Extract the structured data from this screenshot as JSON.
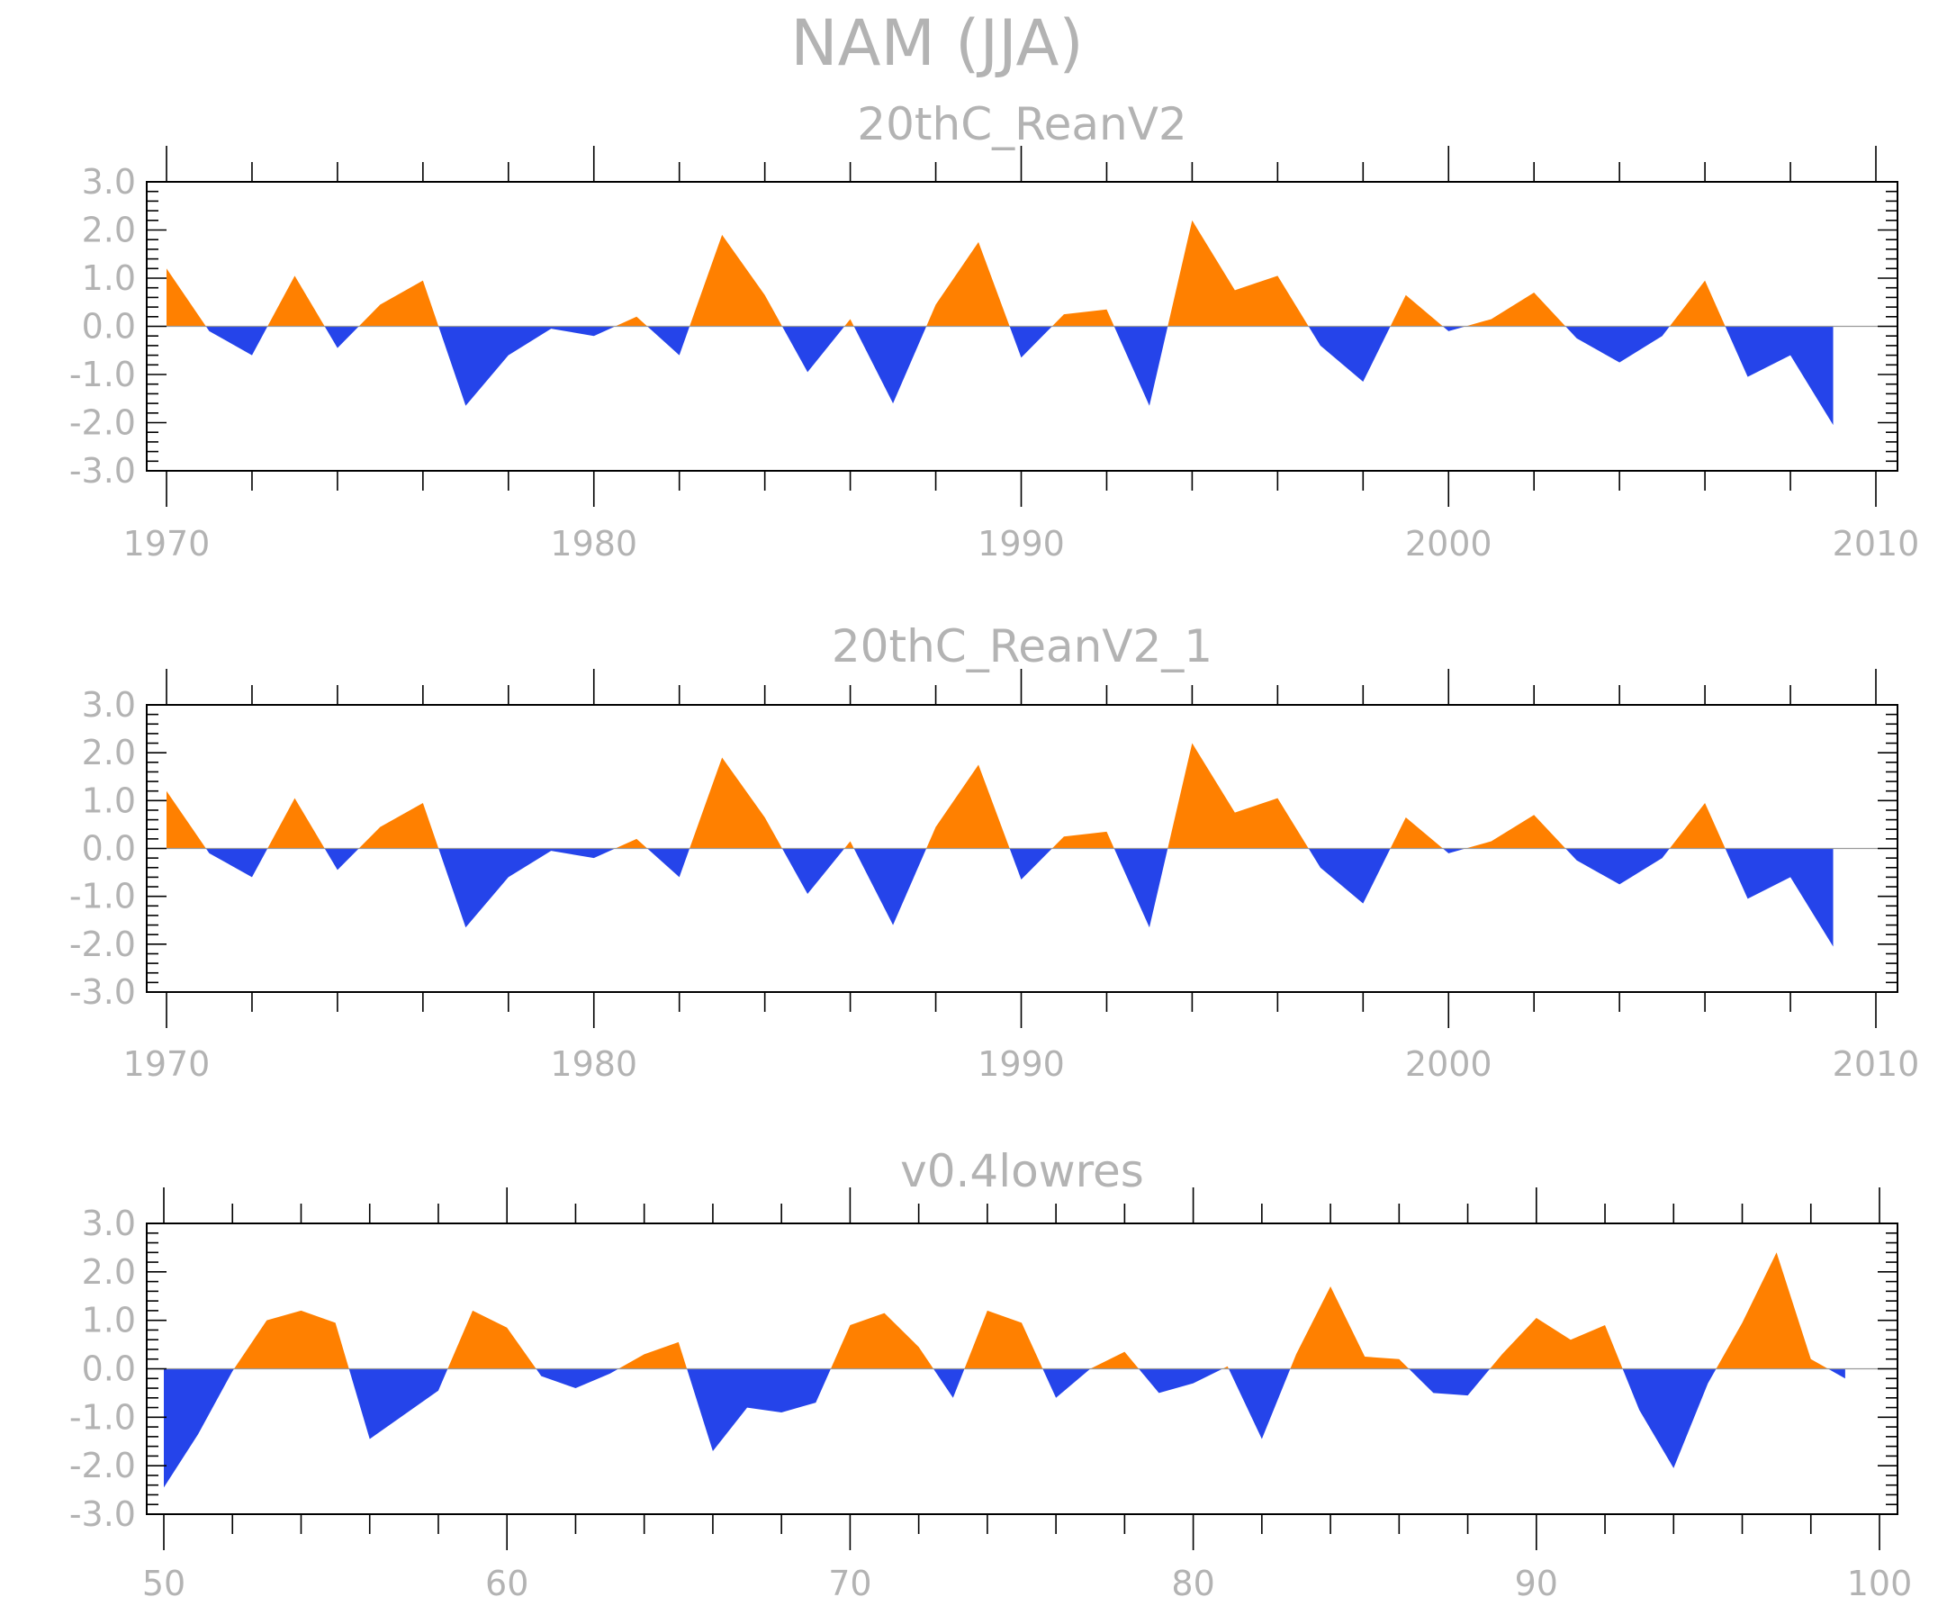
{
  "figure_title": "NAM (JJA)",
  "colors": {
    "positive": "#ff8000",
    "negative": "#2544ea",
    "text": "#b3b3b3",
    "frame": "#000000"
  },
  "chart_data": [
    {
      "type": "area",
      "title": "20thC_ReanV2",
      "xlabel": "",
      "ylabel": "",
      "xlim": [
        1970,
        2010
      ],
      "ylim": [
        -3,
        3
      ],
      "x_tick_labels": [
        "1970",
        "1980",
        "1990",
        "2000",
        "2010"
      ],
      "y_tick_labels": [
        "3.0",
        "2.0",
        "1.0",
        "0.0",
        "-1.0",
        "-2.0",
        "-3.0"
      ],
      "x": [
        1970,
        1971,
        1972,
        1973,
        1974,
        1975,
        1976,
        1977,
        1978,
        1979,
        1980,
        1981,
        1982,
        1983,
        1984,
        1985,
        1986,
        1987,
        1988,
        1989,
        1990,
        1991,
        1992,
        1993,
        1994,
        1995,
        1996,
        1997,
        1998,
        1999,
        2000,
        2001,
        2002,
        2003,
        2004,
        2005,
        2006,
        2007,
        2008,
        2009
      ],
      "values": [
        1.2,
        -0.1,
        -0.6,
        1.05,
        -0.45,
        0.45,
        0.95,
        -1.65,
        -0.6,
        -0.05,
        -0.2,
        0.2,
        -0.6,
        1.9,
        0.65,
        -0.95,
        0.15,
        -1.6,
        0.45,
        1.75,
        -0.65,
        0.25,
        0.35,
        -1.65,
        2.2,
        0.75,
        1.05,
        -0.4,
        -1.15,
        0.65,
        -0.1,
        0.15,
        0.7,
        -0.25,
        -0.75,
        -0.2,
        0.95,
        -1.05,
        -0.6,
        -2.05
      ]
    },
    {
      "type": "area",
      "title": "20thC_ReanV2_1",
      "xlabel": "",
      "ylabel": "",
      "xlim": [
        1970,
        2010
      ],
      "ylim": [
        -3,
        3
      ],
      "x_tick_labels": [
        "1970",
        "1980",
        "1990",
        "2000",
        "2010"
      ],
      "y_tick_labels": [
        "3.0",
        "2.0",
        "1.0",
        "0.0",
        "-1.0",
        "-2.0",
        "-3.0"
      ],
      "x": [
        1970,
        1971,
        1972,
        1973,
        1974,
        1975,
        1976,
        1977,
        1978,
        1979,
        1980,
        1981,
        1982,
        1983,
        1984,
        1985,
        1986,
        1987,
        1988,
        1989,
        1990,
        1991,
        1992,
        1993,
        1994,
        1995,
        1996,
        1997,
        1998,
        1999,
        2000,
        2001,
        2002,
        2003,
        2004,
        2005,
        2006,
        2007,
        2008,
        2009
      ],
      "values": [
        1.2,
        -0.1,
        -0.6,
        1.05,
        -0.45,
        0.45,
        0.95,
        -1.65,
        -0.6,
        -0.05,
        -0.2,
        0.2,
        -0.6,
        1.9,
        0.65,
        -0.95,
        0.15,
        -1.6,
        0.45,
        1.75,
        -0.65,
        0.25,
        0.35,
        -1.65,
        2.2,
        0.75,
        1.05,
        -0.4,
        -1.15,
        0.65,
        -0.1,
        0.15,
        0.7,
        -0.25,
        -0.75,
        -0.2,
        0.95,
        -1.05,
        -0.6,
        -2.05
      ]
    },
    {
      "type": "area",
      "title": "v0.4lowres",
      "xlabel": "",
      "ylabel": "",
      "xlim": [
        50,
        100
      ],
      "ylim": [
        -3,
        3
      ],
      "x_tick_labels": [
        "50",
        "60",
        "70",
        "80",
        "90",
        "100"
      ],
      "y_tick_labels": [
        "3.0",
        "2.0",
        "1.0",
        "0.0",
        "-1.0",
        "-2.0",
        "-3.0"
      ],
      "x": [
        50,
        51,
        52,
        53,
        54,
        55,
        56,
        57,
        58,
        59,
        60,
        61,
        62,
        63,
        64,
        65,
        66,
        67,
        68,
        69,
        70,
        71,
        72,
        73,
        74,
        75,
        76,
        77,
        78,
        79,
        80,
        81,
        82,
        83,
        84,
        85,
        86,
        87,
        88,
        89,
        90,
        91,
        92,
        93,
        94,
        95,
        96,
        97,
        98,
        99
      ],
      "values": [
        -2.45,
        -1.35,
        -0.05,
        1.0,
        1.2,
        0.95,
        -1.45,
        -0.95,
        -0.45,
        1.2,
        0.85,
        -0.15,
        -0.4,
        -0.1,
        0.3,
        0.55,
        -1.7,
        -0.8,
        -0.9,
        -0.7,
        0.9,
        1.15,
        0.45,
        -0.6,
        1.2,
        0.95,
        -0.6,
        0.0,
        0.35,
        -0.5,
        -0.3,
        0.05,
        -1.45,
        0.3,
        1.7,
        0.25,
        0.2,
        -0.5,
        -0.55,
        0.3,
        1.05,
        0.6,
        0.9,
        -0.85,
        -2.05,
        -0.3,
        0.95,
        2.4,
        0.2,
        -0.2
      ]
    }
  ]
}
